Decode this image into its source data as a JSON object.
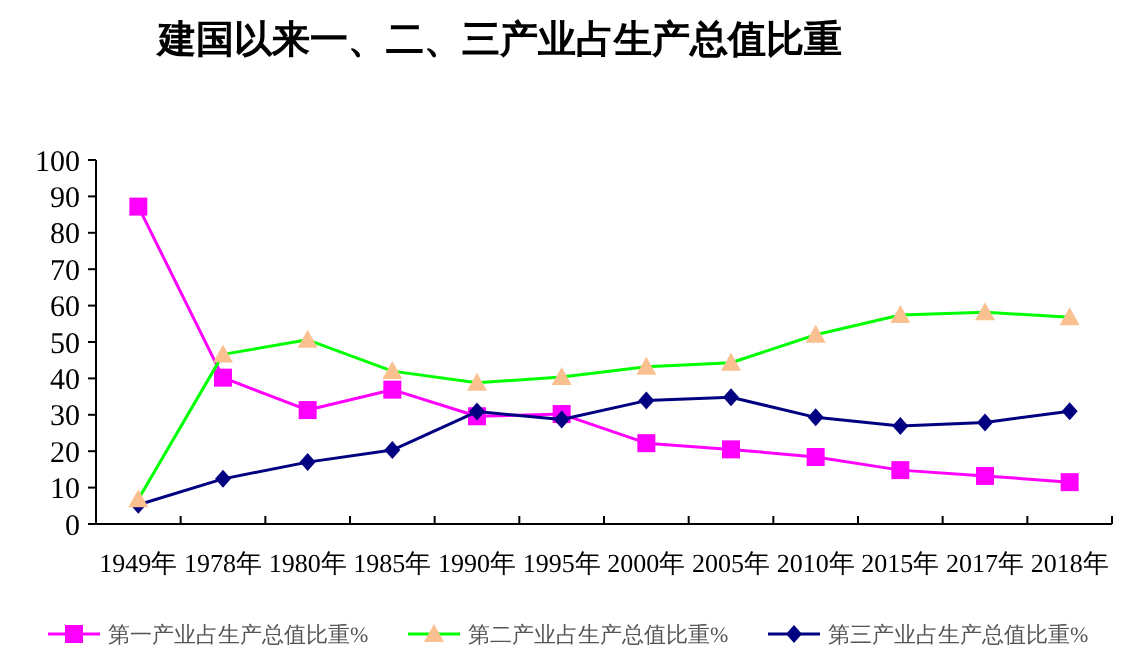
{
  "chart_data": {
    "type": "line",
    "title": "建国以来一、二、三产业占生产总值比重",
    "categories": [
      "1949年",
      "1978年",
      "1980年",
      "1985年",
      "1990年",
      "1995年",
      "2000年",
      "2005年",
      "2010年",
      "2015年",
      "2017年",
      "2018年"
    ],
    "series": [
      {
        "name": "第一产业占生产总值比重%",
        "color": "#ff00ff",
        "marker": "square",
        "values": [
          87.2,
          40.2,
          31.3,
          36.9,
          29.6,
          30.2,
          22.2,
          20.5,
          18.4,
          14.8,
          13.2,
          11.5
        ]
      },
      {
        "name": "第二产业占生产总值比重%",
        "color": "#00ff00",
        "marker": "triangle",
        "values": [
          6.8,
          46.6,
          50.6,
          42.0,
          38.8,
          40.4,
          43.2,
          44.3,
          52.0,
          57.4,
          58.2,
          56.8
        ]
      },
      {
        "name": "第三产业占生产总值比重%",
        "color": "#000080",
        "marker": "diamond",
        "values": [
          5.3,
          12.4,
          17.0,
          20.3,
          30.9,
          28.7,
          33.9,
          34.8,
          29.3,
          26.9,
          27.9,
          31.0
        ]
      }
    ],
    "ylim": [
      0,
      100
    ],
    "yticks": [
      0,
      10,
      20,
      30,
      40,
      50,
      60,
      70,
      80,
      90,
      100
    ],
    "grid": false,
    "legend": "bottom"
  }
}
